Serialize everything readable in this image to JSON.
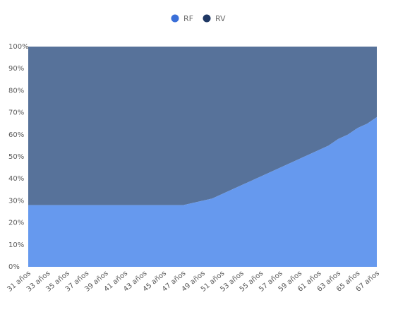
{
  "chart_data": {
    "type": "area",
    "stacked": "percent",
    "categories": [
      "31 años",
      "32 años",
      "33 años",
      "34 años",
      "35 años",
      "36 años",
      "37 años",
      "38 años",
      "39 años",
      "40 años",
      "41 años",
      "42 años",
      "43 años",
      "44 años",
      "45 años",
      "46 años",
      "47 años",
      "48 años",
      "49 años",
      "50 años",
      "51 años",
      "52 años",
      "53 años",
      "54 años",
      "55 años",
      "56 años",
      "57 años",
      "58 años",
      "59 años",
      "60 años",
      "61 años",
      "62 años",
      "63 años",
      "64 años",
      "65 años",
      "66 años",
      "67 años"
    ],
    "x_tick_labels": [
      "31 años",
      "33 años",
      "35 años",
      "37 años",
      "39 años",
      "41 años",
      "43 años",
      "45 años",
      "47 años",
      "49 años",
      "51 años",
      "53 años",
      "55 años",
      "57 años",
      "59 años",
      "61 años",
      "63 años",
      "65 años",
      "67 años"
    ],
    "series": [
      {
        "name": "RF",
        "color": "#6699ee",
        "values": [
          28,
          28,
          28,
          28,
          28,
          28,
          28,
          28,
          28,
          28,
          28,
          28,
          28,
          28,
          28,
          28,
          28,
          29,
          30,
          31,
          33,
          35,
          37,
          39,
          41,
          43,
          45,
          47,
          49,
          51,
          53,
          55,
          58,
          60,
          63,
          65,
          68
        ]
      },
      {
        "name": "RV",
        "color": "#57729a",
        "values": [
          72,
          72,
          72,
          72,
          72,
          72,
          72,
          72,
          72,
          72,
          72,
          72,
          72,
          72,
          72,
          72,
          72,
          71,
          70,
          69,
          67,
          65,
          63,
          61,
          59,
          57,
          55,
          53,
          51,
          49,
          47,
          45,
          42,
          40,
          37,
          35,
          32
        ]
      }
    ],
    "y_tick_labels": [
      "0%",
      "10%",
      "20%",
      "30%",
      "40%",
      "50%",
      "60%",
      "70%",
      "80%",
      "90%",
      "100%"
    ],
    "ylim": [
      0,
      100
    ],
    "grid": false,
    "legend": {
      "position": "top-center",
      "items": [
        {
          "label": "RF",
          "color": "#3a6fd8"
        },
        {
          "label": "RV",
          "color": "#1f3864"
        }
      ]
    }
  }
}
